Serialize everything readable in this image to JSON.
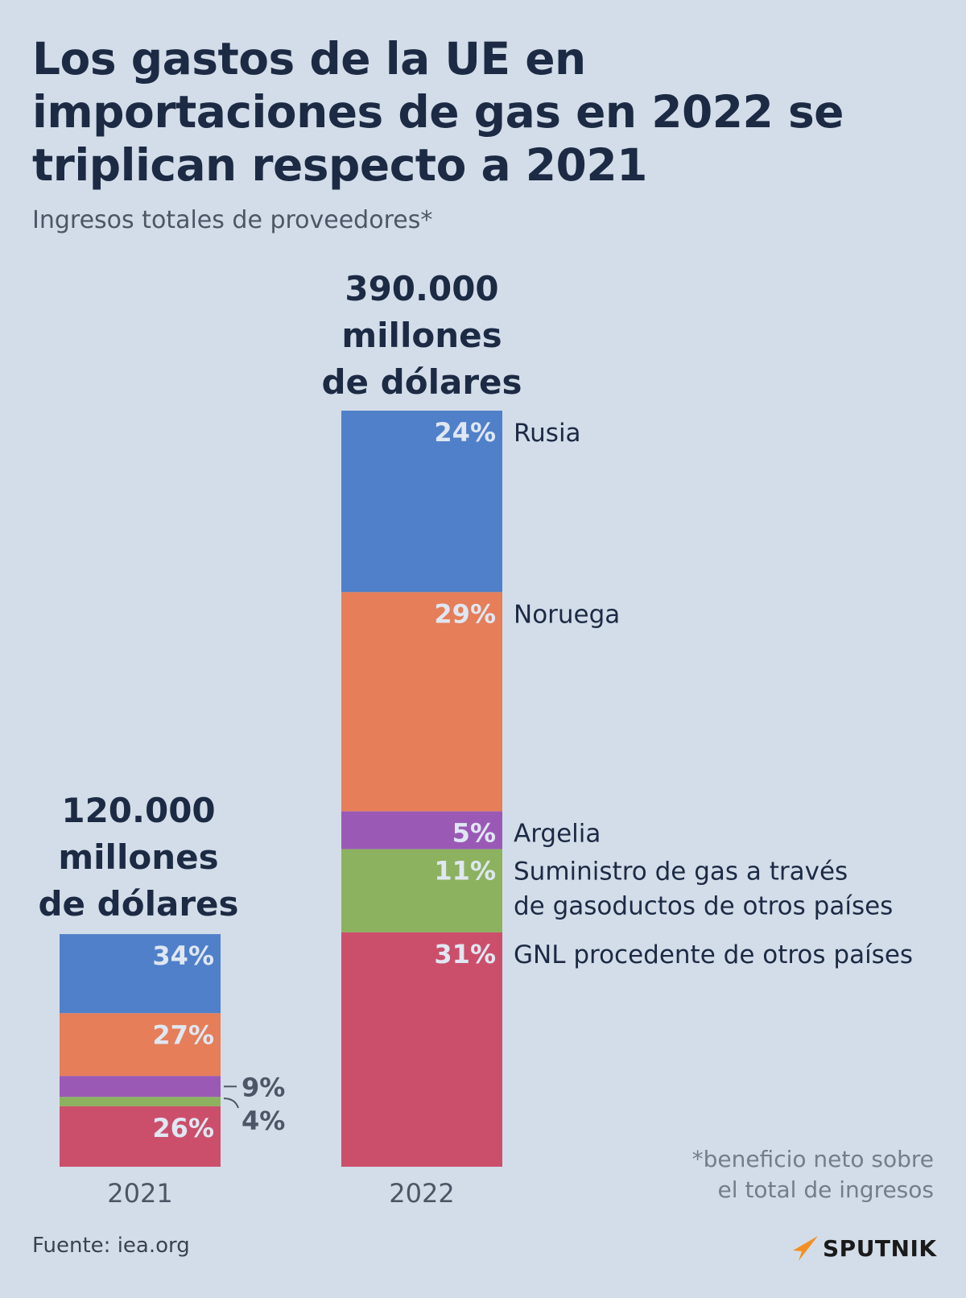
{
  "header": {
    "title": "Los gastos de la UE en importaciones de gas en 2022 se triplican respecto a 2021",
    "subtitle": "Ingresos totales de proveedores*"
  },
  "chart_data": {
    "type": "stacked-bar",
    "title": "Los gastos de la UE en importaciones de gas en 2022 se triplican respecto a 2021",
    "subtitle": "Ingresos totales de proveedores*",
    "categories": [
      "2021",
      "2022"
    ],
    "totals_musd": [
      120000,
      390000
    ],
    "total_labels": [
      [
        "120.000",
        "millones",
        "de dólares"
      ],
      [
        "390.000",
        "millones",
        "de dólares"
      ]
    ],
    "series": [
      {
        "name": "Rusia",
        "label": [
          "Rusia"
        ],
        "color": "#5080c9",
        "values": [
          34,
          24
        ]
      },
      {
        "name": "Noruega",
        "label": [
          "Noruega"
        ],
        "color": "#e57e59",
        "values": [
          27,
          29
        ]
      },
      {
        "name": "Argelia",
        "label": [
          "Argelia"
        ],
        "color": "#9b59b6",
        "values": [
          9,
          5
        ]
      },
      {
        "name": "Suministro de gas a través de gasoductos de otros países",
        "label": [
          "Suministro de gas a través",
          "de gasoductos de otros países"
        ],
        "color": "#8db25f",
        "values": [
          4,
          11
        ]
      },
      {
        "name": "GNL procedente de otros países",
        "label": [
          "GNL procedente de otros países"
        ],
        "color": "#cb4f6b",
        "values": [
          26,
          31
        ]
      }
    ],
    "unit": "%"
  },
  "footnote": [
    "*beneficio neto sobre",
    "el total de ingresos"
  ],
  "source": "Fuente: iea.org",
  "brand": "SPUTNIK"
}
